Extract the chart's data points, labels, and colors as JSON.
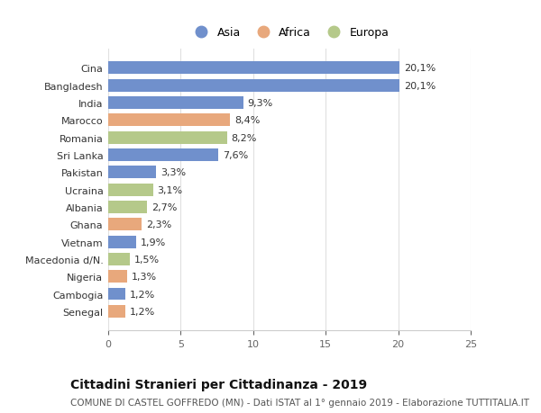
{
  "categories": [
    "Senegal",
    "Cambogia",
    "Nigeria",
    "Macedonia d/N.",
    "Vietnam",
    "Ghana",
    "Albania",
    "Ucraina",
    "Pakistan",
    "Sri Lanka",
    "Romania",
    "Marocco",
    "India",
    "Bangladesh",
    "Cina"
  ],
  "values": [
    1.2,
    1.2,
    1.3,
    1.5,
    1.9,
    2.3,
    2.7,
    3.1,
    3.3,
    7.6,
    8.2,
    8.4,
    9.3,
    20.1,
    20.1
  ],
  "labels": [
    "1,2%",
    "1,2%",
    "1,3%",
    "1,5%",
    "1,9%",
    "2,3%",
    "2,7%",
    "3,1%",
    "3,3%",
    "7,6%",
    "8,2%",
    "8,4%",
    "9,3%",
    "20,1%",
    "20,1%"
  ],
  "continents": [
    "Africa",
    "Asia",
    "Africa",
    "Europa",
    "Asia",
    "Africa",
    "Europa",
    "Europa",
    "Asia",
    "Asia",
    "Europa",
    "Africa",
    "Asia",
    "Asia",
    "Asia"
  ],
  "colors": {
    "Asia": "#7090cc",
    "Africa": "#e8a87c",
    "Europa": "#b5c98a"
  },
  "legend_labels": [
    "Asia",
    "Africa",
    "Europa"
  ],
  "legend_colors": [
    "#7090cc",
    "#e8a87c",
    "#b5c98a"
  ],
  "xlim": [
    0,
    25
  ],
  "xticks": [
    0,
    5,
    10,
    15,
    20,
    25
  ],
  "title": "Cittadini Stranieri per Cittadinanza - 2019",
  "subtitle": "COMUNE DI CASTEL GOFFREDO (MN) - Dati ISTAT al 1° gennaio 2019 - Elaborazione TUTTITALIA.IT",
  "title_fontsize": 10,
  "subtitle_fontsize": 7.5,
  "label_fontsize": 8,
  "tick_fontsize": 8,
  "background_color": "#ffffff",
  "bar_height": 0.72
}
